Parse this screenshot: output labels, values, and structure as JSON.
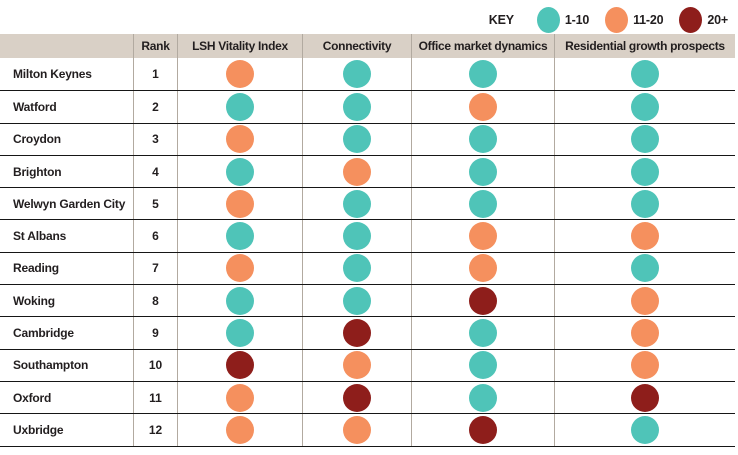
{
  "legend": {
    "title": "KEY",
    "entries": [
      {
        "label": "1-10",
        "band": "1-10",
        "color": "#4fc4b8"
      },
      {
        "label": "11-20",
        "band": "11-20",
        "color": "#f5905e"
      },
      {
        "label": "20+",
        "band": "20+",
        "color": "#8e1e1b"
      }
    ]
  },
  "table": {
    "columns": [
      "",
      "Rank",
      "LSH Vitality Index",
      "Connectivity",
      "Office market dynamics",
      "Residential growth prospects"
    ]
  },
  "colors": {
    "header_background": "#d9d0c6",
    "grid_line": "#b2aaa0",
    "row_separator": "#161616",
    "text": "#221e1f"
  },
  "chart_data": {
    "type": "table",
    "title": "",
    "legend_title": "KEY",
    "bands": {
      "1-10": "#4fc4b8",
      "11-20": "#f5905e",
      "20+": "#8e1e1b"
    },
    "columns": [
      "Rank",
      "LSH Vitality Index",
      "Connectivity",
      "Office market dynamics",
      "Residential growth prospects"
    ],
    "score_columns": [
      "LSH Vitality Index",
      "Connectivity",
      "Office market dynamics",
      "Residential growth prospects"
    ],
    "rows": [
      {
        "city": "Milton Keynes",
        "rank": 1,
        "scores": [
          "11-20",
          "1-10",
          "1-10",
          "1-10"
        ]
      },
      {
        "city": "Watford",
        "rank": 2,
        "scores": [
          "1-10",
          "1-10",
          "11-20",
          "1-10"
        ]
      },
      {
        "city": "Croydon",
        "rank": 3,
        "scores": [
          "11-20",
          "1-10",
          "1-10",
          "1-10"
        ]
      },
      {
        "city": "Brighton",
        "rank": 4,
        "scores": [
          "1-10",
          "11-20",
          "1-10",
          "1-10"
        ]
      },
      {
        "city": "Welwyn Garden City",
        "rank": 5,
        "scores": [
          "11-20",
          "1-10",
          "1-10",
          "1-10"
        ]
      },
      {
        "city": "St Albans",
        "rank": 6,
        "scores": [
          "1-10",
          "1-10",
          "11-20",
          "11-20"
        ]
      },
      {
        "city": "Reading",
        "rank": 7,
        "scores": [
          "11-20",
          "1-10",
          "11-20",
          "1-10"
        ]
      },
      {
        "city": "Woking",
        "rank": 8,
        "scores": [
          "1-10",
          "1-10",
          "20+",
          "11-20"
        ]
      },
      {
        "city": "Cambridge",
        "rank": 9,
        "scores": [
          "1-10",
          "20+",
          "1-10",
          "11-20"
        ]
      },
      {
        "city": "Southampton",
        "rank": 10,
        "scores": [
          "20+",
          "11-20",
          "1-10",
          "11-20"
        ]
      },
      {
        "city": "Oxford",
        "rank": 11,
        "scores": [
          "11-20",
          "20+",
          "1-10",
          "20+"
        ]
      },
      {
        "city": "Uxbridge",
        "rank": 12,
        "scores": [
          "11-20",
          "11-20",
          "20+",
          "1-10"
        ]
      }
    ]
  }
}
